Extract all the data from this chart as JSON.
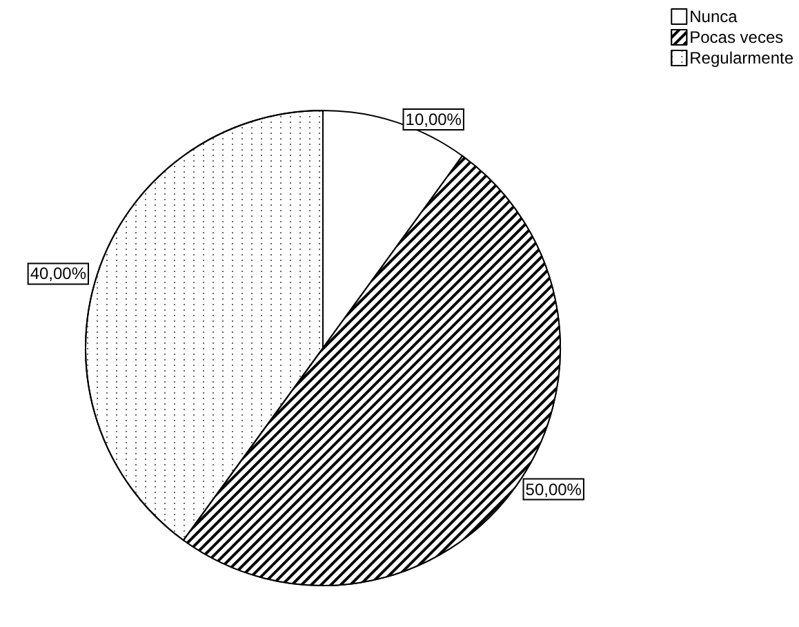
{
  "chart_data": {
    "type": "pie",
    "categories": [
      "Nunca",
      "Pocas veces",
      "Regularmente"
    ],
    "values": [
      10,
      50,
      40
    ],
    "colors": [
      "#ffffff",
      "#000000",
      "#ffffff"
    ],
    "value_labels": [
      "10,00%",
      "50,00%",
      "40,00%"
    ],
    "legend": "top right"
  }
}
